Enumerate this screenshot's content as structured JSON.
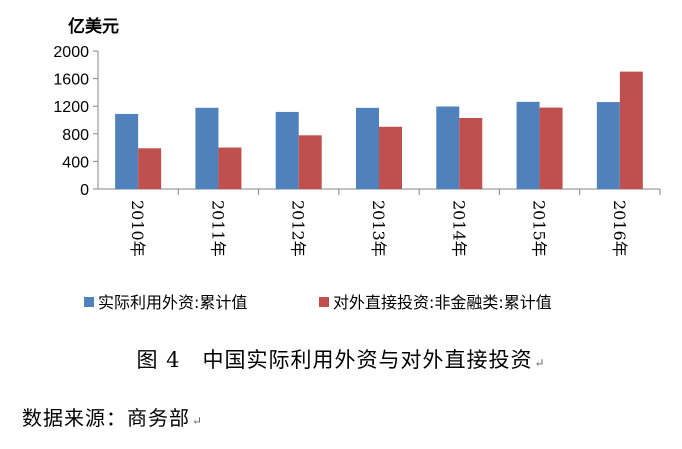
{
  "chart_data": {
    "type": "bar",
    "ylabel": "亿美元",
    "ylim": [
      0,
      2000
    ],
    "yticks": [
      "0",
      "400",
      "800",
      "1200",
      "1600",
      "2000"
    ],
    "categories": [
      "2010年",
      "2011年",
      "2012年",
      "2013年",
      "2014年",
      "2015年",
      "2016年"
    ],
    "series": [
      {
        "name": "实际利用外资:累计值",
        "color": "#4f81bd",
        "values": [
          1088,
          1177,
          1117,
          1176,
          1196,
          1263,
          1260
        ]
      },
      {
        "name": "对外直接投资:非金融类:累计值",
        "color": "#c0504d",
        "values": [
          590,
          601,
          778,
          902,
          1029,
          1180,
          1701
        ]
      }
    ],
    "grid": false,
    "legend_position": "bottom"
  },
  "caption": "图 4　中国实际利用外资与对外直接投资",
  "source": "数据来源：商务部"
}
